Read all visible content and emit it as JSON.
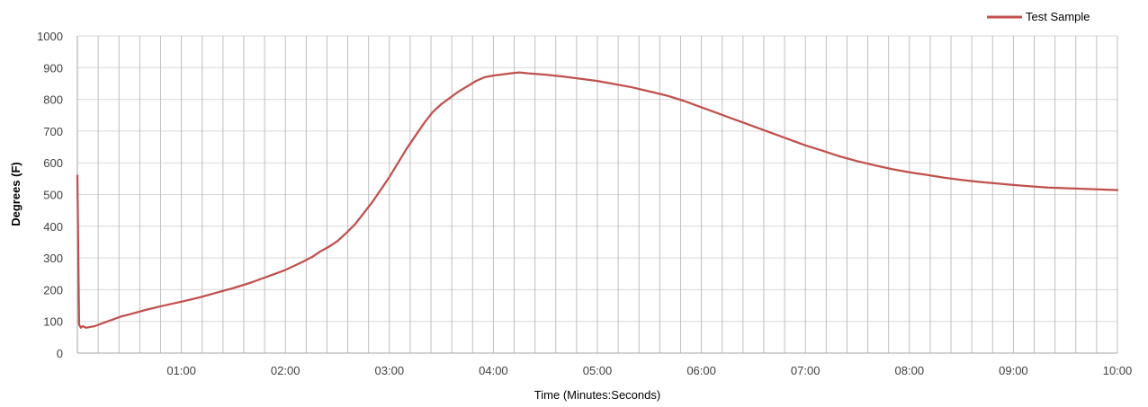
{
  "chart_data": {
    "type": "line",
    "xlabel": "Time (Minutes:Seconds)",
    "ylabel": "Degrees (F)",
    "x_unit": "seconds",
    "xlim": [
      0,
      600
    ],
    "ylim": [
      0,
      1000
    ],
    "y_ticks": [
      0,
      100,
      200,
      300,
      400,
      500,
      600,
      700,
      800,
      900,
      1000
    ],
    "x_ticks": [
      {
        "value": 60,
        "label": "01:00"
      },
      {
        "value": 120,
        "label": "02:00"
      },
      {
        "value": 180,
        "label": "03:00"
      },
      {
        "value": 240,
        "label": "04:00"
      },
      {
        "value": 300,
        "label": "05:00"
      },
      {
        "value": 360,
        "label": "06:00"
      },
      {
        "value": 420,
        "label": "07:00"
      },
      {
        "value": 480,
        "label": "08:00"
      },
      {
        "value": 540,
        "label": "09:00"
      },
      {
        "value": 600,
        "label": "10:00"
      }
    ],
    "vertical_grid_step": 12,
    "grid": {
      "horizontal": true,
      "vertical": true
    },
    "legend_position": "top-right",
    "series": [
      {
        "name": "Test Sample",
        "color": "#c0504d",
        "x": [
          0,
          1,
          2,
          3,
          5,
          8,
          10,
          15,
          20,
          25,
          30,
          40,
          50,
          60,
          70,
          80,
          90,
          100,
          110,
          120,
          130,
          136,
          140,
          145,
          150,
          155,
          160,
          165,
          170,
          175,
          180,
          185,
          190,
          195,
          200,
          205,
          210,
          220,
          230,
          235,
          240,
          250,
          255,
          260,
          270,
          280,
          290,
          300,
          310,
          320,
          330,
          340,
          350,
          360,
          370,
          380,
          390,
          400,
          410,
          420,
          430,
          440,
          450,
          460,
          470,
          480,
          490,
          500,
          510,
          520,
          530,
          540,
          550,
          560,
          570,
          580,
          590,
          600
        ],
        "y": [
          560,
          90,
          80,
          85,
          80,
          83,
          85,
          95,
          105,
          115,
          122,
          137,
          150,
          162,
          175,
          190,
          205,
          222,
          242,
          262,
          288,
          305,
          320,
          335,
          353,
          378,
          405,
          440,
          475,
          515,
          555,
          600,
          645,
          685,
          725,
          760,
          785,
          825,
          858,
          870,
          875,
          882,
          885,
          882,
          878,
          872,
          865,
          858,
          848,
          838,
          825,
          812,
          795,
          775,
          755,
          735,
          715,
          695,
          675,
          655,
          638,
          620,
          605,
          592,
          580,
          570,
          562,
          553,
          546,
          540,
          535,
          530,
          526,
          522,
          520,
          518,
          516,
          514
        ]
      }
    ]
  }
}
